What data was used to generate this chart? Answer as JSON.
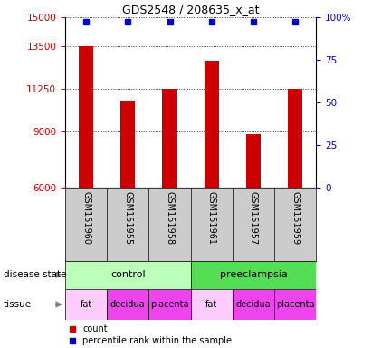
{
  "title": "GDS2548 / 208635_x_at",
  "samples": [
    "GSM151960",
    "GSM151955",
    "GSM151958",
    "GSM151961",
    "GSM151957",
    "GSM151959"
  ],
  "counts": [
    13500,
    10600,
    11250,
    12700,
    8850,
    11250
  ],
  "ylim": [
    6000,
    15000
  ],
  "yticks": [
    6000,
    9000,
    11250,
    13500,
    15000
  ],
  "ytick_labels": [
    "6000",
    "9000",
    "11250",
    "13500",
    "15000"
  ],
  "right_yticks": [
    0,
    25,
    50,
    75,
    100
  ],
  "right_ytick_labels": [
    "0",
    "25",
    "50",
    "75",
    "100%"
  ],
  "bar_color": "#cc0000",
  "percentile_color": "#0000cc",
  "left_tick_color": "#cc0000",
  "right_tick_color": "#0000cc",
  "disease_state_groups": [
    {
      "label": "control",
      "span": [
        0,
        3
      ],
      "color": "#bbffbb"
    },
    {
      "label": "preeclampsia",
      "span": [
        3,
        6
      ],
      "color": "#55dd55"
    }
  ],
  "tissue_data": [
    {
      "label": "fat",
      "span": [
        0,
        1
      ],
      "color": "#ffccff"
    },
    {
      "label": "decidua",
      "span": [
        1,
        2
      ],
      "color": "#ee44ee"
    },
    {
      "label": "placenta",
      "span": [
        2,
        3
      ],
      "color": "#ee44ee"
    },
    {
      "label": "fat",
      "span": [
        3,
        4
      ],
      "color": "#ffccff"
    },
    {
      "label": "decidua",
      "span": [
        4,
        5
      ],
      "color": "#ee44ee"
    },
    {
      "label": "placenta",
      "span": [
        5,
        6
      ],
      "color": "#ee44ee"
    }
  ],
  "bar_width": 0.35,
  "sample_label_bg": "#cccccc"
}
